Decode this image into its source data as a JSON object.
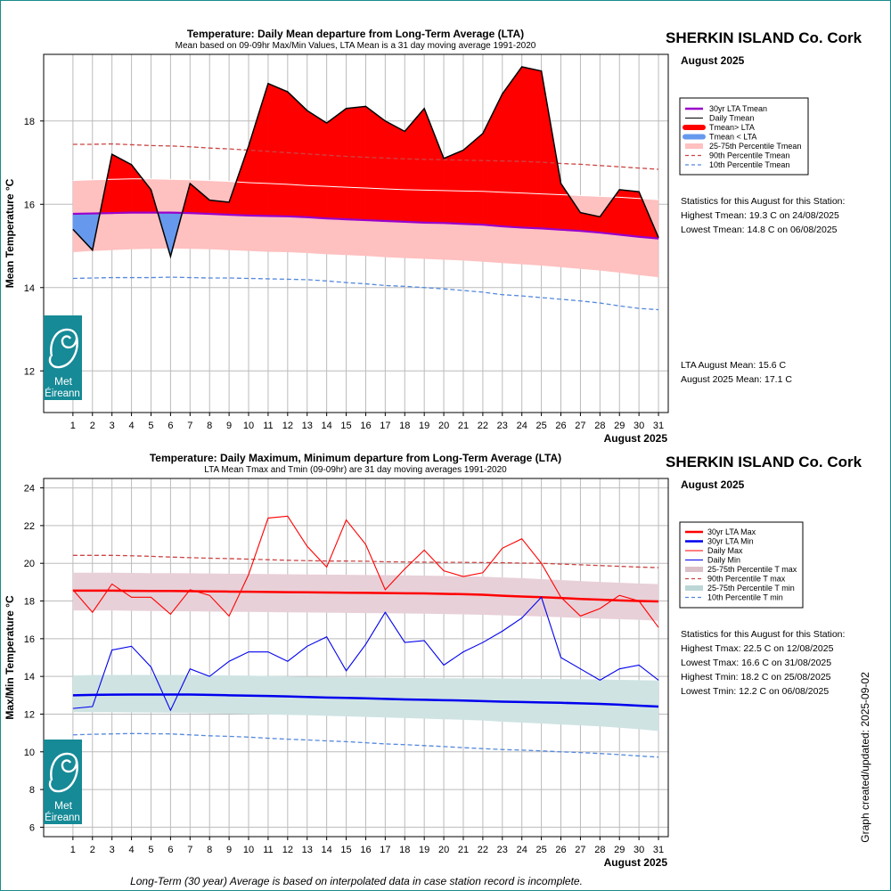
{
  "top": {
    "title": "Temperature: Daily Mean departure from Long-Term Average (LTA)",
    "subtitle": "Mean based on 09-09hr Max/Min Values, LTA Mean is a 31 day moving average 1991-2020",
    "station": "SHERKIN ISLAND Co. Cork",
    "month_label": "August 2025",
    "ylabel": "Mean Temperature °C",
    "xlabel": "August 2025",
    "legend": [
      "30yr LTA Tmean",
      "Daily Tmean",
      "Tmean> LTA",
      "Tmean < LTA",
      "25-75th Percentile Tmean",
      "90th Percentile Tmean",
      "10th Percentile Tmean"
    ],
    "stats_title": "Statistics for this August for this Station:",
    "stats": [
      "Highest Tmean: 19.3 C on 24/08/2025",
      "Lowest Tmean: 14.8 C on 06/08/2025"
    ],
    "lta_mean": "LTA August Mean: 15.6 C",
    "month_mean": "August 2025 Mean: 17.1 C"
  },
  "bottom": {
    "title": "Temperature: Daily Maximum, Minimum departure from Long-Term Average (LTA)",
    "subtitle": "LTA Mean Tmax and Tmin (09-09hr) are 31 day moving averages 1991-2020",
    "station": "SHERKIN ISLAND Co. Cork",
    "month_label": "August 2025",
    "ylabel": "Max/Min Temperature °C",
    "xlabel": "August 2025",
    "legend": [
      "30yr LTA Max",
      "30yr LTA Min",
      "Daily Max",
      "Daily Min",
      "25-75th Percentile T max",
      "90th Percentile T max",
      "25-75th Percentile T min",
      "10th Percentile T min"
    ],
    "stats_title": "Statistics for this August for this Station:",
    "stats": [
      "Highest Tmax: 22.5 C on 12/08/2025",
      "Lowest Tmax: 16.6 C on 31/08/2025",
      "Highest Tmin: 18.2 C on 25/08/2025",
      "Lowest Tmin: 12.2 C on 06/08/2025"
    ]
  },
  "logo_text": [
    "Met",
    "Éireann"
  ],
  "side_note": "Graph created/updated:  2025-09-02",
  "footnote": "Long-Term (30 year) Average is based on interpolated data in case station record is incomplete.",
  "colors": {
    "above": "#ff0000",
    "below": "#6699ee",
    "lta_mean": "#9900cc",
    "band_mean": "#ffc0c0",
    "p90": "#cc4444",
    "p10": "#5588dd",
    "max": "#ff0000",
    "min": "#0000ee",
    "band_max": "#e8d0d8",
    "band_min": "#cfe3e3",
    "logo": "#168a96"
  },
  "chart_data": [
    {
      "type": "line",
      "name": "top",
      "x": [
        1,
        2,
        3,
        4,
        5,
        6,
        7,
        8,
        9,
        10,
        11,
        12,
        13,
        14,
        15,
        16,
        17,
        18,
        19,
        20,
        21,
        22,
        23,
        24,
        25,
        26,
        27,
        28,
        29,
        30,
        31
      ],
      "xlim": [
        -0.5,
        31.5
      ],
      "ylim": [
        11,
        19.6
      ],
      "yticks": [
        12,
        14,
        16,
        18
      ],
      "series": [
        {
          "name": "Daily Tmean",
          "values": [
            15.4,
            14.9,
            17.2,
            16.95,
            16.35,
            14.75,
            16.5,
            16.1,
            16.05,
            17.4,
            18.9,
            18.7,
            18.25,
            17.95,
            18.3,
            18.35,
            18.0,
            17.75,
            18.3,
            17.1,
            17.3,
            17.7,
            18.65,
            19.3,
            19.2,
            16.5,
            15.8,
            15.7,
            16.35,
            16.3,
            15.2
          ]
        },
        {
          "name": "30yr LTA Tmean",
          "values": [
            15.77,
            15.78,
            15.79,
            15.8,
            15.8,
            15.8,
            15.79,
            15.77,
            15.75,
            15.73,
            15.72,
            15.71,
            15.69,
            15.66,
            15.64,
            15.62,
            15.6,
            15.58,
            15.56,
            15.55,
            15.53,
            15.51,
            15.47,
            15.44,
            15.42,
            15.39,
            15.36,
            15.32,
            15.27,
            15.22,
            15.18
          ]
        },
        {
          "name": "25-75th Percentile Tmean",
          "lower": [
            14.85,
            14.88,
            14.9,
            14.92,
            14.93,
            14.94,
            14.93,
            14.92,
            14.9,
            14.88,
            14.86,
            14.85,
            14.83,
            14.8,
            14.78,
            14.76,
            14.73,
            14.71,
            14.69,
            14.67,
            14.65,
            14.62,
            14.59,
            14.56,
            14.53,
            14.49,
            14.45,
            14.41,
            14.36,
            14.3,
            14.25
          ],
          "upper": [
            16.57,
            16.59,
            16.6,
            16.61,
            16.61,
            16.6,
            16.59,
            16.57,
            16.55,
            16.52,
            16.5,
            16.48,
            16.45,
            16.43,
            16.41,
            16.39,
            16.37,
            16.35,
            16.34,
            16.33,
            16.32,
            16.31,
            16.29,
            16.27,
            16.25,
            16.23,
            16.21,
            16.19,
            16.17,
            16.14,
            16.11
          ]
        },
        {
          "name": "90th Percentile Tmean",
          "values": [
            17.44,
            17.44,
            17.45,
            17.43,
            17.41,
            17.4,
            17.38,
            17.35,
            17.33,
            17.3,
            17.27,
            17.24,
            17.21,
            17.18,
            17.15,
            17.13,
            17.11,
            17.09,
            17.08,
            17.07,
            17.06,
            17.05,
            17.04,
            17.03,
            17.01,
            16.98,
            16.96,
            16.93,
            16.9,
            16.87,
            16.84
          ]
        },
        {
          "name": "10th Percentile Tmean",
          "values": [
            14.22,
            14.23,
            14.24,
            14.24,
            14.24,
            14.25,
            14.24,
            14.23,
            14.23,
            14.22,
            14.21,
            14.2,
            14.19,
            14.16,
            14.12,
            14.09,
            14.05,
            14.03,
            14.0,
            13.97,
            13.93,
            13.89,
            13.83,
            13.8,
            13.76,
            13.72,
            13.68,
            13.63,
            13.56,
            13.5,
            13.47
          ]
        }
      ]
    },
    {
      "type": "line",
      "name": "bottom",
      "x": [
        1,
        2,
        3,
        4,
        5,
        6,
        7,
        8,
        9,
        10,
        11,
        12,
        13,
        14,
        15,
        16,
        17,
        18,
        19,
        20,
        21,
        22,
        23,
        24,
        25,
        26,
        27,
        28,
        29,
        30,
        31
      ],
      "xlim": [
        -0.5,
        31.5
      ],
      "ylim": [
        5.5,
        24.5
      ],
      "yticks": [
        6,
        8,
        10,
        12,
        14,
        16,
        18,
        20,
        22,
        24
      ],
      "series": [
        {
          "name": "Daily Max",
          "values": [
            18.6,
            17.4,
            18.9,
            18.2,
            18.2,
            17.3,
            18.6,
            18.3,
            17.2,
            19.4,
            22.4,
            22.5,
            20.9,
            19.8,
            22.3,
            21.0,
            18.6,
            19.7,
            20.7,
            19.6,
            19.3,
            19.5,
            20.8,
            21.3,
            20.0,
            18.2,
            17.2,
            17.6,
            18.3,
            18.0,
            16.6
          ]
        },
        {
          "name": "Daily Min",
          "values": [
            12.3,
            12.4,
            15.4,
            15.6,
            14.5,
            12.2,
            14.4,
            14.0,
            14.8,
            15.3,
            15.3,
            14.8,
            15.6,
            16.1,
            14.3,
            15.7,
            17.4,
            15.8,
            15.9,
            14.6,
            15.3,
            15.8,
            16.4,
            17.1,
            18.2,
            15.0,
            14.4,
            13.8,
            14.4,
            14.6,
            13.8
          ]
        },
        {
          "name": "30yr LTA Max",
          "values": [
            18.55,
            18.55,
            18.55,
            18.54,
            18.53,
            18.53,
            18.52,
            18.51,
            18.5,
            18.49,
            18.48,
            18.47,
            18.46,
            18.45,
            18.44,
            18.43,
            18.42,
            18.41,
            18.4,
            18.38,
            18.36,
            18.33,
            18.28,
            18.24,
            18.2,
            18.16,
            18.11,
            18.07,
            18.03,
            18.0,
            17.98
          ]
        },
        {
          "name": "30yr LTA Min",
          "values": [
            13.0,
            13.02,
            13.03,
            13.04,
            13.04,
            13.04,
            13.04,
            13.02,
            13.0,
            12.98,
            12.96,
            12.94,
            12.91,
            12.88,
            12.86,
            12.84,
            12.81,
            12.78,
            12.76,
            12.74,
            12.72,
            12.69,
            12.66,
            12.64,
            12.62,
            12.6,
            12.57,
            12.54,
            12.5,
            12.45,
            12.4
          ]
        },
        {
          "name": "25-75th Percentile T max",
          "lower": [
            17.5,
            17.5,
            17.5,
            17.48,
            17.47,
            17.46,
            17.45,
            17.44,
            17.43,
            17.42,
            17.41,
            17.4,
            17.39,
            17.38,
            17.37,
            17.36,
            17.35,
            17.34,
            17.33,
            17.31,
            17.29,
            17.27,
            17.24,
            17.21,
            17.18,
            17.14,
            17.1,
            17.06,
            17.03,
            17.0,
            16.95
          ],
          "upper": [
            19.5,
            19.5,
            19.5,
            19.49,
            19.48,
            19.48,
            19.47,
            19.46,
            19.45,
            19.44,
            19.43,
            19.42,
            19.41,
            19.4,
            19.39,
            19.38,
            19.37,
            19.36,
            19.35,
            19.33,
            19.31,
            19.29,
            19.25,
            19.21,
            19.16,
            19.11,
            19.06,
            19.01,
            18.97,
            18.93,
            18.9
          ]
        },
        {
          "name": "90th Percentile T max",
          "values": [
            20.42,
            20.42,
            20.42,
            20.4,
            20.37,
            20.33,
            20.3,
            20.27,
            20.25,
            20.22,
            20.19,
            20.16,
            20.14,
            20.12,
            20.12,
            20.11,
            20.08,
            20.07,
            20.06,
            20.05,
            20.05,
            20.04,
            20.03,
            20.01,
            20.0,
            19.96,
            19.92,
            19.88,
            19.84,
            19.8,
            19.77
          ]
        },
        {
          "name": "25-75th Percentile T min",
          "lower": [
            12.1,
            12.1,
            12.1,
            12.09,
            12.08,
            12.07,
            12.06,
            12.04,
            12.02,
            12.0,
            11.98,
            11.96,
            11.94,
            11.91,
            11.88,
            11.85,
            11.82,
            11.79,
            11.76,
            11.73,
            11.7,
            11.66,
            11.6,
            11.55,
            11.5,
            11.45,
            11.4,
            11.35,
            11.28,
            11.2,
            11.1
          ],
          "upper": [
            14.05,
            14.07,
            14.08,
            14.08,
            14.08,
            14.08,
            14.07,
            14.06,
            14.05,
            14.04,
            14.02,
            14.0,
            13.98,
            13.96,
            13.95,
            13.94,
            13.93,
            13.92,
            13.91,
            13.9,
            13.9,
            13.9,
            13.89,
            13.88,
            13.87,
            13.86,
            13.85,
            13.84,
            13.82,
            13.8,
            13.78
          ]
        },
        {
          "name": "10th Percentile T min",
          "values": [
            10.9,
            10.93,
            10.95,
            10.97,
            10.96,
            10.95,
            10.9,
            10.85,
            10.82,
            10.78,
            10.72,
            10.67,
            10.63,
            10.58,
            10.54,
            10.48,
            10.42,
            10.38,
            10.33,
            10.28,
            10.22,
            10.17,
            10.12,
            10.09,
            10.05,
            10.0,
            9.96,
            9.91,
            9.85,
            9.78,
            9.72
          ]
        }
      ]
    }
  ]
}
